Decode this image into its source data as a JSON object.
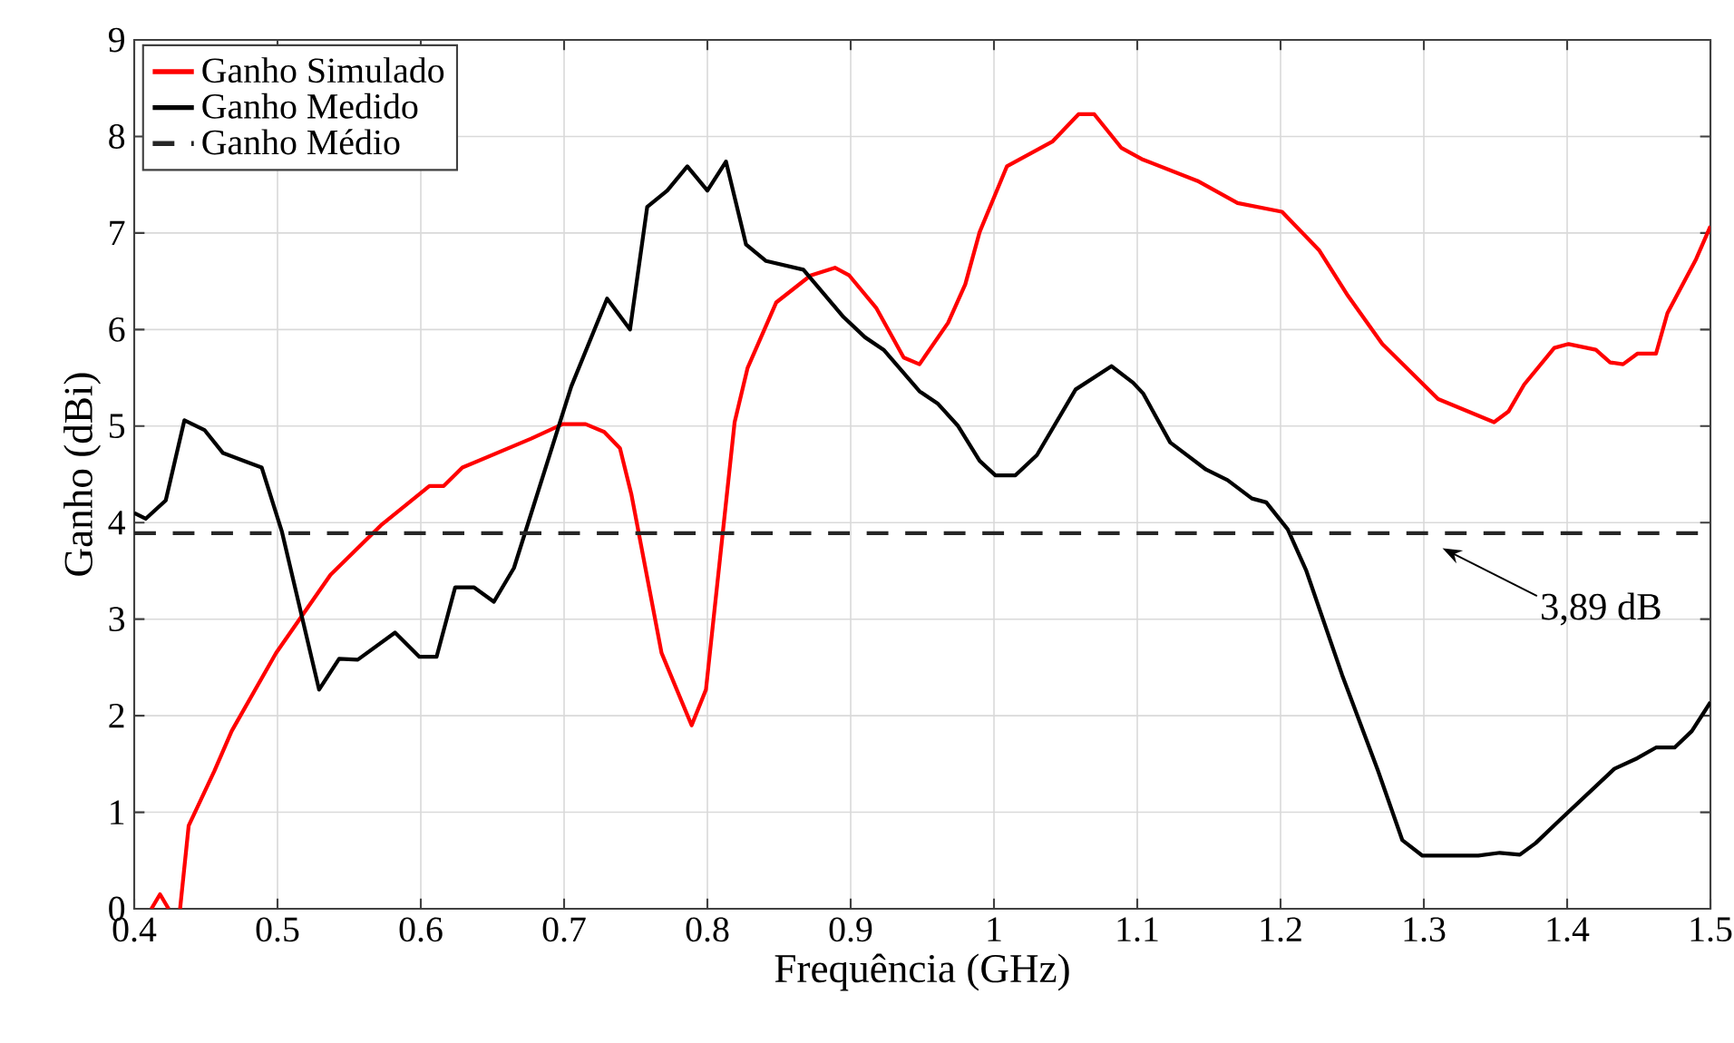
{
  "chart_data": {
    "type": "line",
    "xlabel": "Frequência (GHz)",
    "ylabel": "Ganho (dBi)",
    "xlim": [
      0.4,
      1.5
    ],
    "ylim": [
      0,
      9
    ],
    "xticks": [
      0.4,
      0.5,
      0.6,
      0.7,
      0.8,
      0.9,
      1,
      1.1,
      1.2,
      1.3,
      1.4,
      1.5
    ],
    "yticks": [
      0,
      1,
      2,
      3,
      4,
      5,
      6,
      7,
      8,
      9
    ],
    "grid": true,
    "legend": "top left",
    "series": [
      {
        "name": "Ganho Simulado",
        "color": "#ff0000",
        "line_style": "solid",
        "x": [
          0.412,
          0.418,
          0.424,
          0.428,
          0.432,
          0.438,
          0.456,
          0.468,
          0.499,
          0.537,
          0.572,
          0.606,
          0.616,
          0.629,
          0.677,
          0.699,
          0.715,
          0.728,
          0.739,
          0.747,
          0.768,
          0.789,
          0.799,
          0.819,
          0.828,
          0.848,
          0.872,
          0.889,
          0.899,
          0.918,
          0.937,
          0.948,
          0.968,
          0.98,
          0.99,
          1.009,
          1.041,
          1.059,
          1.07,
          1.089,
          1.104,
          1.142,
          1.17,
          1.201,
          1.227,
          1.247,
          1.271,
          1.31,
          1.349,
          1.359,
          1.37,
          1.391,
          1.401,
          1.42,
          1.43,
          1.439,
          1.449,
          1.462,
          1.47,
          1.49,
          1.5
        ],
        "values": [
          0,
          0.15,
          0,
          null,
          0,
          0.86,
          1.43,
          1.84,
          2.65,
          3.46,
          3.97,
          4.38,
          4.38,
          4.57,
          4.87,
          5.02,
          5.02,
          4.94,
          4.77,
          4.29,
          2.65,
          1.9,
          2.27,
          5.04,
          5.6,
          6.28,
          6.56,
          6.64,
          6.56,
          6.22,
          5.71,
          5.64,
          6.07,
          6.47,
          7.01,
          7.69,
          7.95,
          8.23,
          8.23,
          7.88,
          7.76,
          7.54,
          7.31,
          7.22,
          6.82,
          6.35,
          5.85,
          5.28,
          5.04,
          5.15,
          5.43,
          5.81,
          5.85,
          5.79,
          5.66,
          5.64,
          5.75,
          5.75,
          6.17,
          6.73,
          7.07
        ]
      },
      {
        "name": "Ganho Medido",
        "color": "#000000",
        "line_style": "solid",
        "x": [
          0.4,
          0.408,
          0.422,
          0.435,
          0.449,
          0.462,
          0.489,
          0.503,
          0.529,
          0.543,
          0.556,
          0.582,
          0.599,
          0.611,
          0.624,
          0.637,
          0.651,
          0.665,
          0.705,
          0.73,
          0.746,
          0.758,
          0.772,
          0.786,
          0.8,
          0.813,
          0.827,
          0.841,
          0.867,
          0.895,
          0.91,
          0.923,
          0.948,
          0.961,
          0.975,
          0.99,
          1.001,
          1.015,
          1.03,
          1.057,
          1.082,
          1.097,
          1.104,
          1.123,
          1.148,
          1.163,
          1.18,
          1.19,
          1.205,
          1.218,
          1.243,
          1.268,
          1.285,
          1.299,
          1.338,
          1.353,
          1.367,
          1.378,
          1.395,
          1.433,
          1.449,
          1.462,
          1.475,
          1.487,
          1.5
        ],
        "values": [
          4.1,
          4.04,
          4.23,
          5.06,
          4.96,
          4.72,
          4.57,
          3.91,
          2.27,
          2.59,
          2.58,
          2.86,
          2.61,
          2.61,
          3.33,
          3.33,
          3.18,
          3.53,
          5.41,
          6.32,
          6.0,
          7.27,
          7.44,
          7.69,
          7.44,
          7.74,
          6.88,
          6.71,
          6.62,
          6.13,
          5.92,
          5.79,
          5.36,
          5.23,
          5.0,
          4.64,
          4.49,
          4.49,
          4.7,
          5.38,
          5.62,
          5.45,
          5.34,
          4.83,
          4.55,
          4.44,
          4.25,
          4.21,
          3.93,
          3.5,
          2.42,
          1.43,
          0.71,
          0.55,
          0.55,
          0.58,
          0.56,
          0.68,
          0.92,
          1.45,
          1.56,
          1.67,
          1.67,
          1.84,
          2.14
        ]
      },
      {
        "name": "Ganho Médio",
        "color": "#262626",
        "line_style": "dashed",
        "x": [
          0.4,
          1.5
        ],
        "values": [
          3.89,
          3.89
        ]
      }
    ],
    "annotations": [
      "3,89 dB"
    ]
  }
}
